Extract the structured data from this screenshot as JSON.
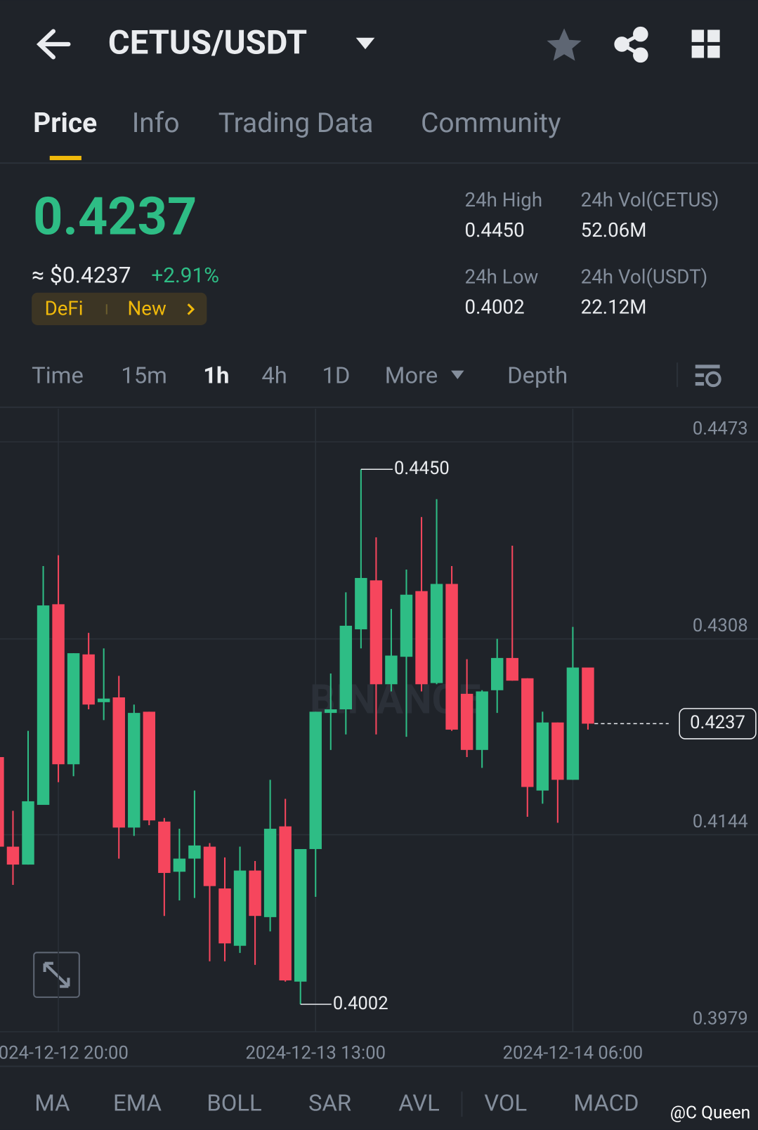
{
  "header": {
    "title": "CETUS/USDT"
  },
  "tabs": [
    "Price",
    "Info",
    "Trading Data",
    "Community"
  ],
  "price": {
    "last": "0.4237",
    "usd": "≈ $0.4237",
    "change": "+2.91%",
    "tags": [
      "DeFi",
      "New"
    ]
  },
  "stats": [
    {
      "label": "24h High",
      "value": "0.4450"
    },
    {
      "label": "24h Vol(CETUS)",
      "value": "52.06M"
    },
    {
      "label": "24h Low",
      "value": "0.4002"
    },
    {
      "label": "24h Vol(USDT)",
      "value": "22.12M"
    }
  ],
  "intervals": [
    "Time",
    "15m",
    "1h",
    "4h",
    "1D",
    "More",
    "Depth"
  ],
  "indicators": [
    "MA",
    "EMA",
    "BOLL",
    "SAR",
    "AVL",
    "VOL",
    "MACD"
  ],
  "watermark": "@C Queen",
  "chart_data": {
    "type": "candlestick",
    "watermark": "BINANCE",
    "up_color": "#2ebd85",
    "down_color": "#f6465d",
    "categories": [
      null,
      null,
      null,
      null,
      "2024-12-12 20:00",
      null,
      null,
      null,
      null,
      null,
      null,
      null,
      null,
      null,
      null,
      null,
      null,
      null,
      null,
      null,
      null,
      "2024-12-13 13:00",
      null,
      null,
      null,
      null,
      null,
      null,
      null,
      null,
      null,
      null,
      null,
      null,
      null,
      null,
      null,
      null,
      "2024-12-14 06:00",
      null
    ],
    "open": [
      0.4209,
      0.4134,
      0.4119,
      0.4169,
      0.4337,
      0.4203,
      0.4295,
      0.4255,
      0.4259,
      0.415,
      0.4247,
      0.4155,
      0.4113,
      0.4124,
      0.4134,
      0.4099,
      0.4051,
      0.4114,
      0.4075,
      0.4151,
      0.4021,
      0.4132,
      0.4246,
      0.4249,
      0.4316,
      0.4357,
      0.427,
      0.4293,
      0.4348,
      0.4271,
      0.4354,
      0.4262,
      0.4215,
      0.4265,
      0.4292,
      0.4275,
      0.4181,
      0.4238,
      0.419,
      0.4284
    ],
    "high": [
      0.4209,
      0.4164,
      0.4231,
      0.4369,
      0.4378,
      0.4296,
      0.4313,
      0.43,
      0.4277,
      0.4253,
      0.4247,
      0.4158,
      0.4149,
      0.4181,
      0.4137,
      0.4125,
      0.4134,
      0.4122,
      0.419,
      0.4174,
      0.4132,
      0.4247,
      0.4279,
      0.4347,
      0.445,
      0.4393,
      0.4333,
      0.4366,
      0.441,
      0.4425,
      0.4369,
      0.4291,
      0.4265,
      0.4308,
      0.4386,
      0.4275,
      0.4247,
      0.4238,
      0.4318,
      0.4284
    ],
    "low": [
      0.4134,
      0.4102,
      0.4119,
      0.4169,
      0.4188,
      0.4193,
      0.4249,
      0.424,
      0.4124,
      0.4143,
      0.4152,
      0.4076,
      0.4089,
      0.4091,
      0.4038,
      0.4038,
      0.4045,
      0.4035,
      0.4063,
      0.4021,
      0.4002,
      0.4092,
      0.4215,
      0.4228,
      0.43,
      0.4228,
      0.4264,
      0.4226,
      0.4264,
      0.427,
      0.4231,
      0.4209,
      0.42,
      0.4246,
      0.4273,
      0.4159,
      0.417,
      0.4154,
      0.419,
      0.4232
    ],
    "close": [
      0.4134,
      0.4119,
      0.4172,
      0.4336,
      0.4203,
      0.4296,
      0.4253,
      0.4258,
      0.415,
      0.4246,
      0.4156,
      0.4112,
      0.4124,
      0.4135,
      0.4101,
      0.4053,
      0.4114,
      0.4076,
      0.4149,
      0.4022,
      0.4132,
      0.4247,
      0.4249,
      0.4319,
      0.4359,
      0.427,
      0.4294,
      0.4345,
      0.427,
      0.4354,
      0.4232,
      0.4215,
      0.4264,
      0.4292,
      0.4273,
      0.4184,
      0.4238,
      0.419,
      0.4284,
      0.4237
    ],
    "ylim": [
      0.3979,
      0.4473
    ],
    "yticks": [
      0.4473,
      0.4308,
      0.4144,
      0.3979
    ],
    "last_price": 0.4237,
    "high_label": "0.4450",
    "low_label": "0.4002"
  }
}
